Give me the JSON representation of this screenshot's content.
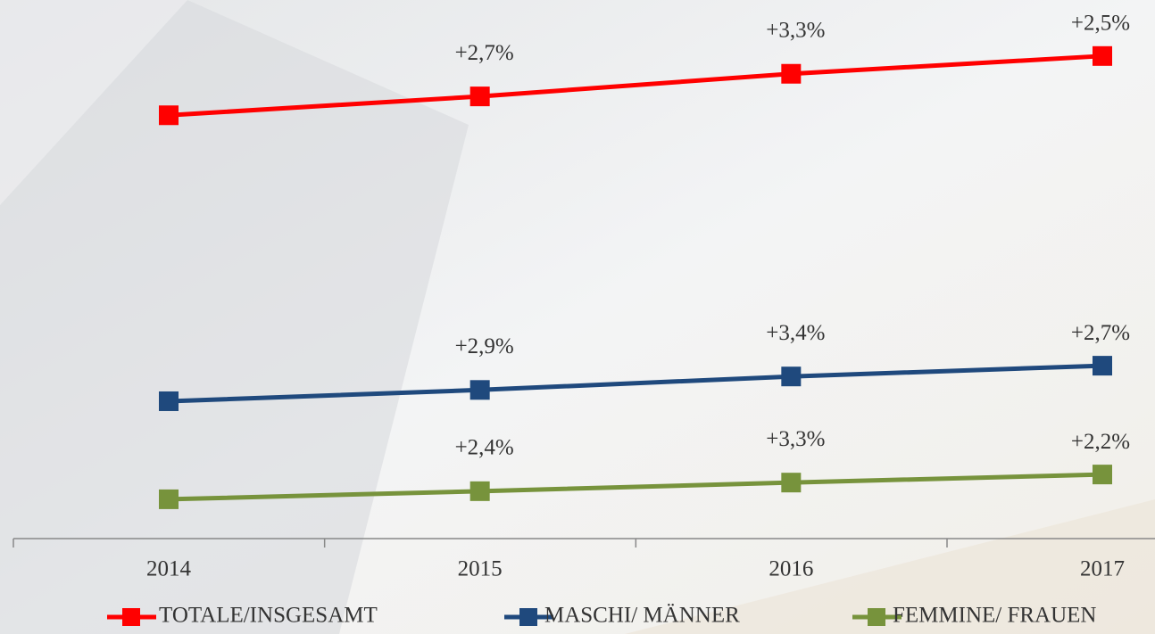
{
  "chart_data": {
    "type": "line",
    "categories": [
      "2014",
      "2015",
      "2016",
      "2017"
    ],
    "ylim": [
      0,
      100
    ],
    "series": [
      {
        "name": "TOTALE/INSGESAMT",
        "color": "#ff0000",
        "values": [
          78.6,
          82.1,
          86.3,
          89.6
        ],
        "labels": [
          null,
          "+2,7%",
          "+3,3%",
          "+2,5%"
        ]
      },
      {
        "name": "MASCHI/ MÄNNER",
        "color": "#1f497d",
        "values": [
          25.5,
          27.6,
          30.1,
          32.1
        ],
        "labels": [
          null,
          "+2,9%",
          "+3,4%",
          "+2,7%"
        ]
      },
      {
        "name": "FEMMINE/ FRAUEN",
        "color": "#77933c",
        "values": [
          7.3,
          8.8,
          10.4,
          11.9
        ],
        "labels": [
          null,
          "+2,4%",
          "+3,3%",
          "+2,2%"
        ]
      }
    ]
  }
}
